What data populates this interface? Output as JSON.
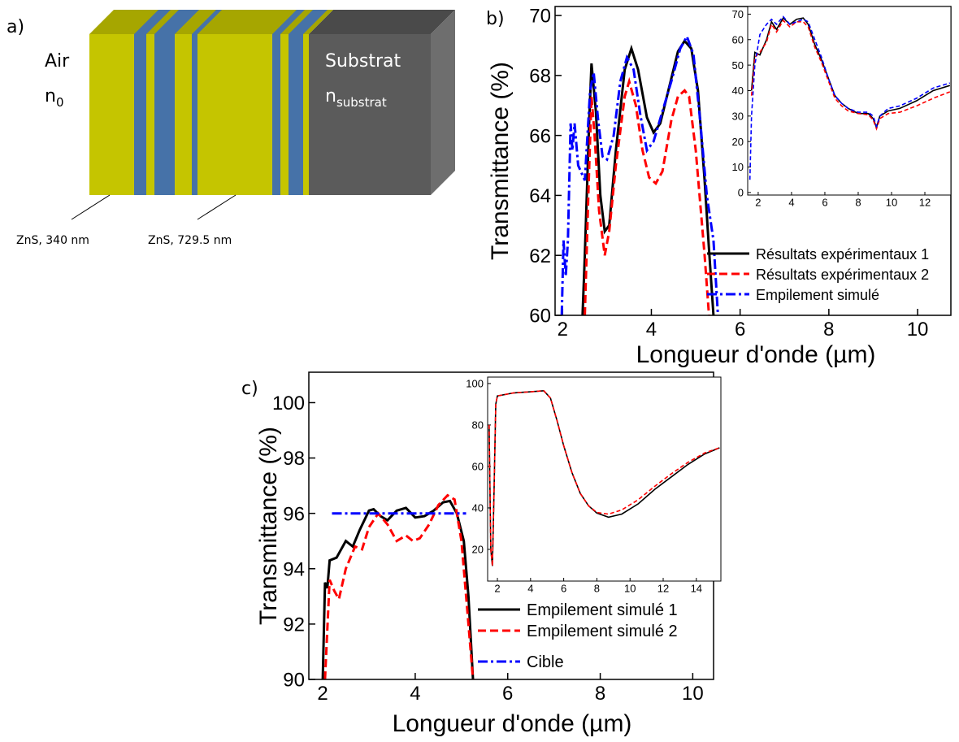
{
  "diagram": {
    "label": "a)",
    "air": {
      "name": "Air",
      "symbol": "n",
      "subscript": "0"
    },
    "substrate": {
      "name": "Substrat",
      "symbol": "n",
      "subscript": "substrat"
    },
    "layers": [
      "ZnS, 340 nm",
      "ZnS, 729.5 nm"
    ]
  },
  "chart_data": [
    {
      "type": "line",
      "label": "b)",
      "xlabel": "Longueur d'onde (µm)",
      "ylabel": "Transmittance (%)",
      "xlim": [
        1.83,
        10.75
      ],
      "ylim": [
        60,
        70.3
      ],
      "xticks": [
        2,
        4,
        6,
        8,
        10
      ],
      "yticks": [
        60,
        62,
        64,
        66,
        68,
        70
      ],
      "legend": "lower right",
      "series": [
        {
          "name": "Résultats expérimentaux 1",
          "color": "#000000",
          "dash": "solid",
          "x": [
            2.45,
            2.5,
            2.6,
            2.65,
            2.75,
            2.85,
            2.95,
            3.05,
            3.2,
            3.4,
            3.55,
            3.7,
            3.9,
            4.05,
            4.2,
            4.4,
            4.6,
            4.75,
            4.9,
            5.05,
            5.2,
            5.3,
            5.4
          ],
          "values": [
            60,
            62,
            66.5,
            68.4,
            66.8,
            64,
            62.8,
            63,
            65.5,
            68.2,
            68.9,
            68.2,
            66.6,
            66.1,
            66.4,
            67.6,
            68.8,
            69.15,
            68.9,
            67.5,
            64.5,
            62.2,
            60
          ]
        },
        {
          "name": "Résultats expérimentaux 2",
          "color": "#ff0000",
          "dash": "dashed",
          "x": [
            2.5,
            2.58,
            2.65,
            2.72,
            2.82,
            2.95,
            3.05,
            3.2,
            3.4,
            3.5,
            3.65,
            3.8,
            3.95,
            4.1,
            4.25,
            4.45,
            4.6,
            4.75,
            4.85,
            5.0,
            5.2,
            5.3
          ],
          "values": [
            60,
            64,
            67.3,
            66,
            63.5,
            62,
            62.8,
            65,
            67.3,
            67.8,
            67,
            65.5,
            64.6,
            64.4,
            64.8,
            66.5,
            67.3,
            67.5,
            67.3,
            65.5,
            62,
            60
          ]
        },
        {
          "name": "Empilement simulé",
          "color": "#0000ff",
          "dash": "dashdot",
          "x": [
            1.98,
            2.02,
            2.07,
            2.12,
            2.18,
            2.22,
            2.27,
            2.35,
            2.5,
            2.62,
            2.7,
            2.8,
            2.9,
            3.0,
            3.15,
            3.3,
            3.45,
            3.6,
            3.75,
            3.9,
            4.05,
            4.25,
            4.45,
            4.65,
            4.8,
            4.95,
            5.1,
            5.25,
            5.4,
            5.5
          ],
          "values": [
            60,
            62.5,
            61.3,
            62.5,
            66.4,
            65.5,
            66.4,
            65,
            64.5,
            67.5,
            68.1,
            66.5,
            65.3,
            65.2,
            66,
            67.8,
            68.6,
            68.2,
            66.7,
            65.5,
            65.8,
            66.8,
            67.8,
            68.9,
            69.3,
            68.7,
            66.5,
            64,
            62.5,
            60
          ]
        }
      ]
    },
    {
      "type": "line",
      "xlim": [
        1.37,
        13.56
      ],
      "ylim": [
        -1,
        73
      ],
      "xticks": [
        2,
        4,
        6,
        8,
        10,
        12
      ],
      "yticks": [
        0,
        10,
        20,
        30,
        40,
        50,
        60,
        70
      ],
      "series": [
        {
          "color": "#000000",
          "dash": "solid",
          "x": [
            1.6,
            1.8,
            2.1,
            2.5,
            2.8,
            3.1,
            3.5,
            3.9,
            4.3,
            4.7,
            5.0,
            5.4,
            5.8,
            6.2,
            6.6,
            7.0,
            7.4,
            8.0,
            8.6,
            8.9,
            9.1,
            9.3,
            9.8,
            10.5,
            11.5,
            12.5,
            13.5
          ],
          "values": [
            40,
            55,
            54,
            60,
            67,
            64,
            68.5,
            66,
            68,
            68.5,
            66,
            58,
            52,
            45,
            38,
            35,
            33,
            31,
            31,
            29,
            25.5,
            30,
            32,
            33,
            36,
            40,
            42
          ]
        },
        {
          "color": "#ff0000",
          "dash": "dashed",
          "x": [
            1.6,
            1.8,
            2.1,
            2.5,
            2.8,
            3.1,
            3.5,
            3.9,
            4.3,
            4.7,
            5.0,
            5.4,
            5.8,
            6.2,
            6.6,
            7.0,
            7.4,
            8.0,
            8.6,
            8.9,
            9.1,
            9.3,
            9.8,
            10.5,
            11.5,
            12.5,
            13.5
          ],
          "values": [
            38,
            53,
            55,
            59,
            66,
            63,
            67.5,
            65,
            67,
            67,
            65,
            57,
            51,
            44,
            37,
            34,
            32,
            31,
            30.5,
            28.5,
            25,
            29,
            31,
            31.5,
            34,
            37,
            39.5
          ]
        },
        {
          "color": "#0000ff",
          "dash": "dashed",
          "x": [
            1.5,
            1.6,
            1.8,
            2.1,
            2.5,
            2.8,
            3.1,
            3.5,
            3.9,
            4.3,
            4.7,
            5.0,
            5.4,
            5.8,
            6.2,
            6.6,
            7.0,
            7.4,
            8.0,
            8.6,
            8.9,
            9.1,
            9.3,
            9.8,
            10.5,
            11.5,
            12.5,
            13.5
          ],
          "values": [
            5,
            30,
            50,
            62,
            66,
            68,
            66,
            69,
            66,
            67,
            68,
            67,
            60,
            53,
            45,
            38,
            35,
            33,
            31.5,
            31.5,
            30,
            26,
            30,
            33,
            34,
            37,
            41,
            43
          ]
        }
      ]
    },
    {
      "type": "line",
      "label": "c)",
      "xlabel": "Longueur d'onde (µm)",
      "ylabel": "Transmittance (%)",
      "xlim": [
        1.7,
        10.45
      ],
      "ylim": [
        90,
        101.1
      ],
      "xticks": [
        2,
        4,
        6,
        8,
        10
      ],
      "yticks": [
        90,
        92,
        94,
        96,
        98,
        100
      ],
      "legend": "lower right",
      "series": [
        {
          "name": "Empilement simulé 1",
          "color": "#000000",
          "dash": "solid",
          "x": [
            2.0,
            2.05,
            2.1,
            2.15,
            2.3,
            2.5,
            2.65,
            2.8,
            3.0,
            3.1,
            3.25,
            3.4,
            3.6,
            3.8,
            4.0,
            4.2,
            4.4,
            4.6,
            4.75,
            4.9,
            5.05,
            5.15,
            5.25
          ],
          "values": [
            90,
            93.5,
            93.3,
            94.3,
            94.4,
            95,
            94.8,
            95.4,
            96.1,
            96.15,
            95.9,
            95.75,
            96.1,
            96.2,
            95.85,
            95.9,
            96.1,
            96.4,
            96.45,
            96,
            95,
            93,
            90
          ]
        },
        {
          "name": "Empilement simulé 2",
          "color": "#ff0000",
          "dash": "dashed",
          "x": [
            2.05,
            2.15,
            2.25,
            2.35,
            2.5,
            2.7,
            2.85,
            3.0,
            3.2,
            3.4,
            3.6,
            3.8,
            3.95,
            4.1,
            4.3,
            4.5,
            4.7,
            4.85,
            5.0,
            5.15,
            5.25
          ],
          "values": [
            90,
            93.6,
            93.2,
            92.9,
            94,
            94.8,
            94.7,
            95.5,
            96,
            95.6,
            95,
            95.2,
            95,
            95.1,
            95.6,
            96.3,
            96.65,
            96.5,
            95,
            92,
            90
          ]
        },
        {
          "name": "Cible",
          "color": "#0000ff",
          "dash": "dashdot",
          "x": [
            2.2,
            5.1
          ],
          "values": [
            96,
            96
          ]
        }
      ]
    },
    {
      "type": "line",
      "xlim": [
        1.41,
        15.48
      ],
      "ylim": [
        4.7,
        103.1
      ],
      "xticks": [
        2,
        4,
        6,
        8,
        10,
        12,
        14
      ],
      "yticks": [
        20,
        40,
        60,
        80,
        100
      ],
      "series": [
        {
          "color": "#000000",
          "dash": "solid",
          "x": [
            1.5,
            1.6,
            1.7,
            1.8,
            1.9,
            2.0,
            3,
            4,
            4.8,
            5.2,
            5.6,
            6.0,
            6.5,
            7.0,
            7.5,
            8.0,
            8.7,
            9.5,
            10.5,
            11.5,
            12.5,
            13.5,
            14.5,
            15.4
          ],
          "values": [
            80,
            20,
            12,
            50,
            90,
            94,
            95.5,
            96,
            96.5,
            93,
            82,
            70,
            57,
            47,
            41,
            37.5,
            35.5,
            37,
            42,
            49,
            55,
            61,
            66,
            69
          ]
        },
        {
          "color": "#ff0000",
          "dash": "dashed",
          "x": [
            1.5,
            1.6,
            1.7,
            1.8,
            1.9,
            2.0,
            3,
            4,
            4.8,
            5.2,
            5.6,
            6.0,
            6.5,
            7.0,
            7.5,
            8.0,
            8.7,
            9.5,
            10.5,
            11.5,
            12.5,
            13.5,
            14.5,
            15.4
          ],
          "values": [
            80,
            20,
            12,
            50,
            90,
            94,
            95.5,
            96,
            96.5,
            93,
            82,
            70,
            57,
            47,
            41,
            37.8,
            37,
            39,
            44,
            50.5,
            56.5,
            62,
            66.5,
            69
          ]
        }
      ]
    }
  ]
}
